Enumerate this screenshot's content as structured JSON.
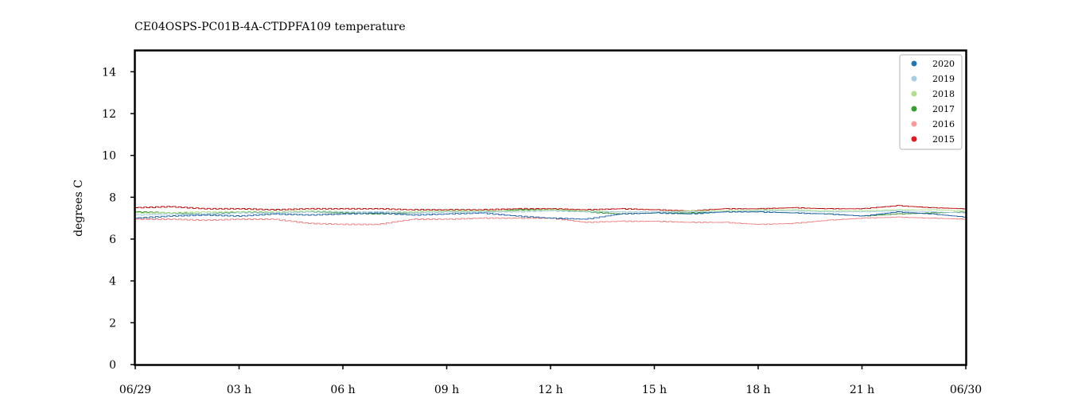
{
  "chart_data": {
    "type": "line",
    "title": "CE04OSPS-PC01B-4A-CTDPFA109 temperature",
    "xlabel": "",
    "ylabel": "degrees C",
    "ylim": [
      0,
      15
    ],
    "xlim": [
      0,
      24
    ],
    "y_ticks": [
      0,
      2,
      4,
      6,
      8,
      10,
      12,
      14
    ],
    "x_ticks": [
      {
        "value": 0,
        "label": "06/29"
      },
      {
        "value": 3,
        "label": "03 h"
      },
      {
        "value": 6,
        "label": "06 h"
      },
      {
        "value": 9,
        "label": "09 h"
      },
      {
        "value": 12,
        "label": "12 h"
      },
      {
        "value": 15,
        "label": "15 h"
      },
      {
        "value": 18,
        "label": "18 h"
      },
      {
        "value": 21,
        "label": "21 h"
      },
      {
        "value": 24,
        "label": "06/30"
      }
    ],
    "grid": false,
    "legend_position": "top-right",
    "series": [
      {
        "name": "2020",
        "color": "#1f77b4",
        "x": [
          0,
          1,
          2,
          3,
          4,
          5,
          6,
          7,
          8,
          9,
          10,
          11,
          12,
          13,
          14,
          15,
          16,
          17,
          18,
          19,
          20,
          21,
          22,
          23,
          24
        ],
        "y": [
          7.0,
          7.1,
          7.15,
          7.1,
          7.2,
          7.15,
          7.2,
          7.25,
          7.15,
          7.2,
          7.25,
          7.1,
          7.0,
          6.95,
          7.2,
          7.25,
          7.2,
          7.3,
          7.3,
          7.25,
          7.2,
          7.1,
          7.3,
          7.2,
          7.05
        ]
      },
      {
        "name": "2019",
        "color": "#a6cee3",
        "x": [
          0,
          1,
          2,
          3,
          4,
          5,
          6,
          7,
          8,
          9,
          10,
          11,
          12,
          13,
          14,
          15,
          16,
          17,
          18,
          19,
          20,
          21,
          22,
          23,
          24
        ],
        "y": [
          7.15,
          7.2,
          7.2,
          7.25,
          7.25,
          7.3,
          7.3,
          7.3,
          7.25,
          7.3,
          7.3,
          7.3,
          7.35,
          7.3,
          7.3,
          7.3,
          7.3,
          7.3,
          7.35,
          7.35,
          7.3,
          7.3,
          7.35,
          7.3,
          7.25
        ]
      },
      {
        "name": "2018",
        "color": "#b2df8a",
        "x": [
          0,
          1,
          2,
          3,
          4,
          5,
          6,
          7,
          8,
          9,
          10,
          11,
          12,
          13,
          14,
          15,
          16,
          17,
          18,
          19,
          20,
          21,
          22,
          23,
          24
        ],
        "y": [
          7.25,
          7.25,
          7.3,
          7.3,
          7.3,
          7.35,
          7.3,
          7.3,
          7.3,
          7.35,
          7.35,
          7.35,
          7.4,
          7.35,
          7.3,
          7.3,
          7.35,
          7.35,
          7.4,
          7.4,
          7.35,
          7.35,
          7.4,
          7.4,
          7.35
        ]
      },
      {
        "name": "2017",
        "color": "#33a02c",
        "x": [
          0,
          1,
          2,
          3,
          4,
          5,
          6,
          7,
          8,
          9,
          10,
          11,
          12,
          13,
          14,
          15,
          16,
          17,
          18,
          19,
          20,
          21,
          22,
          23,
          24
        ],
        "y": [
          7.3,
          7.25,
          7.2,
          7.3,
          7.25,
          7.3,
          7.25,
          7.2,
          7.25,
          7.3,
          7.3,
          7.4,
          7.4,
          7.3,
          7.2,
          7.25,
          7.25,
          7.3,
          7.3,
          7.25,
          7.2,
          7.1,
          7.2,
          7.25,
          7.3
        ]
      },
      {
        "name": "2016",
        "color": "#fb9a99",
        "x": [
          0,
          1,
          2,
          3,
          4,
          5,
          6,
          7,
          8,
          9,
          10,
          11,
          12,
          13,
          14,
          15,
          16,
          17,
          18,
          19,
          20,
          21,
          22,
          23,
          24
        ],
        "y": [
          6.95,
          6.95,
          6.9,
          6.95,
          6.95,
          6.75,
          6.7,
          6.7,
          6.95,
          6.95,
          7.0,
          7.0,
          7.0,
          6.8,
          6.85,
          6.85,
          6.8,
          6.8,
          6.7,
          6.75,
          6.9,
          7.0,
          7.05,
          7.0,
          6.95
        ]
      },
      {
        "name": "2015",
        "color": "#e31a1c",
        "x": [
          0,
          1,
          2,
          3,
          4,
          5,
          6,
          7,
          8,
          9,
          10,
          11,
          12,
          13,
          14,
          15,
          16,
          17,
          18,
          19,
          20,
          21,
          22,
          23,
          24
        ],
        "y": [
          7.5,
          7.55,
          7.45,
          7.45,
          7.4,
          7.45,
          7.45,
          7.45,
          7.4,
          7.4,
          7.4,
          7.45,
          7.45,
          7.4,
          7.45,
          7.4,
          7.35,
          7.45,
          7.45,
          7.5,
          7.45,
          7.45,
          7.6,
          7.5,
          7.45
        ]
      }
    ],
    "line_colors": {
      "2020": "#1f5fa8",
      "2019": "#a6cee3",
      "2018": "#b2df8a",
      "2017": "#2a8a2a",
      "2016": "#f08080",
      "2015": "#b80000"
    }
  }
}
